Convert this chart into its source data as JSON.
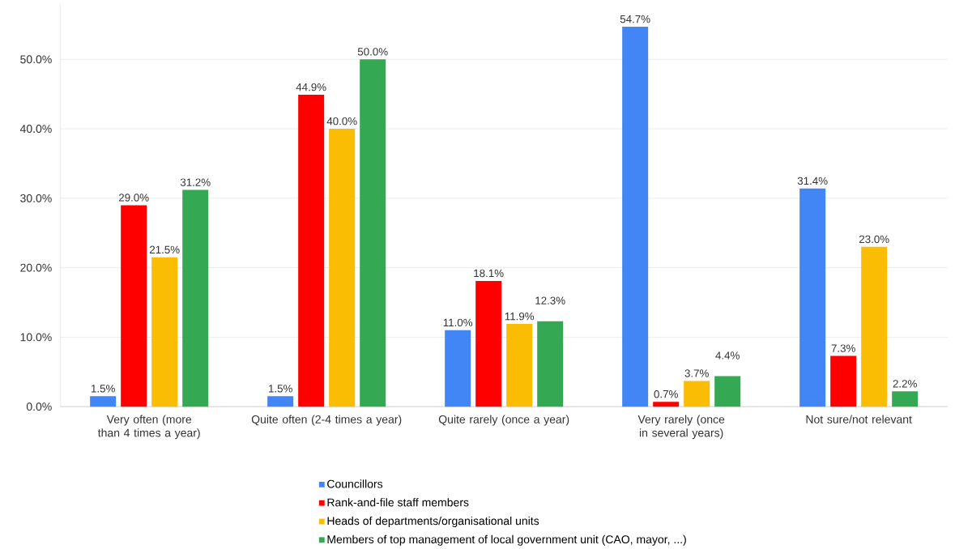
{
  "chart_data": {
    "type": "bar",
    "categories": [
      "Very often (more than 4 times a year)",
      "Quite often (2-4 times a year)",
      "Quite rarely (once a year)",
      "Very rarely (once in several years)",
      "Not sure/not relevant"
    ],
    "series": [
      {
        "name": "Councillors",
        "color": "#4285f4",
        "values": [
          1.5,
          1.5,
          11.0,
          54.7,
          31.4
        ],
        "value_labels": [
          "1.5%",
          "1.5%",
          "11.0%",
          "54.7%",
          "31.4%"
        ]
      },
      {
        "name": "Rank-and-file staff members",
        "color": "#ff0000",
        "values": [
          29.0,
          44.9,
          18.1,
          0.7,
          7.3
        ],
        "value_labels": [
          "29.0%",
          "44.9%",
          "18.1%",
          "0.7%",
          "7.3%"
        ]
      },
      {
        "name": "Heads of departments/organisational units",
        "color": "#fbbc04",
        "values": [
          21.5,
          40.0,
          11.9,
          3.7,
          23.0
        ],
        "value_labels": [
          "21.5%",
          "40.0%",
          "11.9%",
          "3.7%",
          "23.0%"
        ]
      },
      {
        "name": "Members of top management of local government unit (CAO, mayor, ...)",
        "color": "#34a853",
        "values": [
          31.2,
          50.0,
          12.3,
          4.4,
          2.2
        ],
        "value_labels": [
          "31.2%",
          "50.0%",
          "12.3%",
          "4.4%",
          "2.2%"
        ]
      }
    ],
    "yticks": [
      {
        "value": 0,
        "label": "0.0%"
      },
      {
        "value": 10,
        "label": "10.0%"
      },
      {
        "value": 20,
        "label": "20.0%"
      },
      {
        "value": 30,
        "label": "30.0%"
      },
      {
        "value": 40,
        "label": "40.0%"
      },
      {
        "value": 50,
        "label": "50.0%"
      }
    ],
    "ylim": [
      0,
      58
    ],
    "grid": "y",
    "legend": "bottom"
  }
}
